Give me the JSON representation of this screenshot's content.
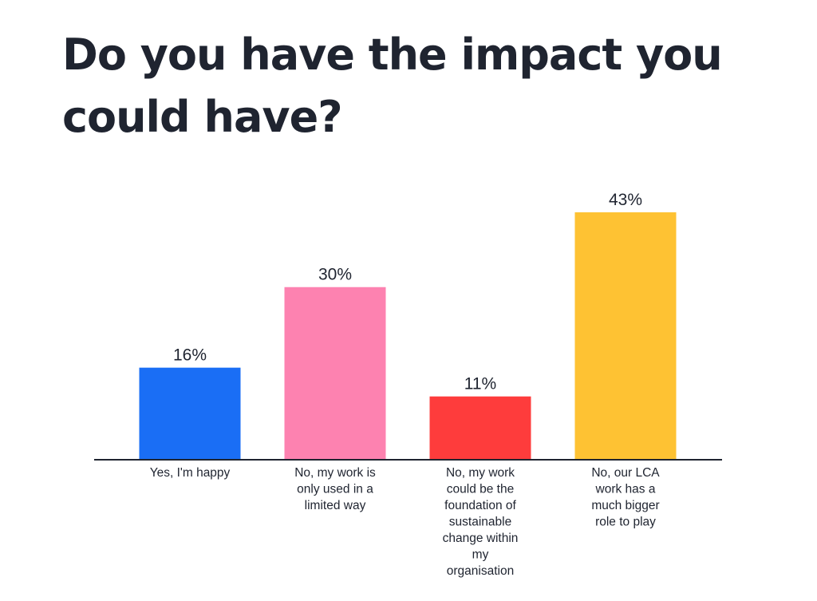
{
  "title": "Do you have the impact you could have?",
  "chart_data": {
    "type": "bar",
    "title": "Do you have the impact you could have?",
    "categories": [
      "Yes, I'm happy",
      "No, my work is only used in a limited way",
      "No, my work could be the foundation of sustainable change within my organisation",
      "No, our LCA work has a much bigger role to play"
    ],
    "category_lines": [
      [
        "Yes, I'm happy"
      ],
      [
        "No, my work is",
        "only used in a",
        "limited way"
      ],
      [
        "No, my work",
        "could be the",
        "foundation of",
        "sustainable",
        "change within",
        "my",
        "organisation"
      ],
      [
        "No, our LCA",
        "work has a",
        "much bigger",
        "role to play"
      ]
    ],
    "values": [
      16,
      30,
      11,
      43
    ],
    "value_labels": [
      "16%",
      "30%",
      "11%",
      "43%"
    ],
    "colors": [
      "#1a6ef5",
      "#fd82b0",
      "#fe3c3c",
      "#fec233"
    ],
    "ylim": [
      0,
      50
    ],
    "grid": false,
    "legend": "none"
  }
}
